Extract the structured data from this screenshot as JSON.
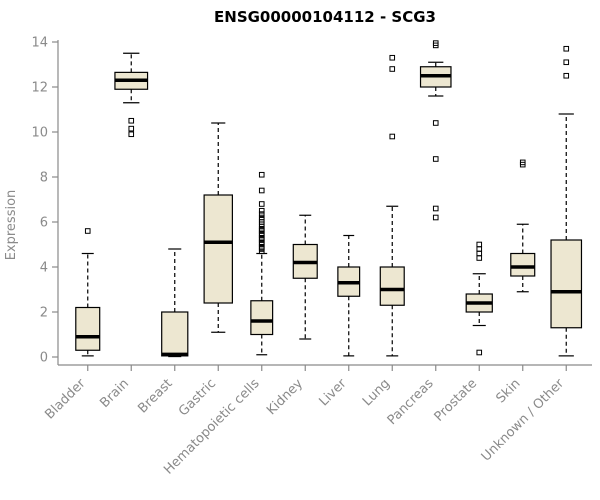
{
  "chart_data": {
    "type": "boxplot",
    "title": "ENSG00000104112 - SCG3",
    "ylabel": "Expression",
    "xlabel": "",
    "ylim": [
      0,
      14
    ],
    "yticks": [
      0,
      2,
      4,
      6,
      8,
      10,
      12,
      14
    ],
    "grid": false,
    "legend": "none",
    "box_fill": "#EDE7D1",
    "box_stroke": "#000000",
    "median_color": "#000000",
    "axis_color": "#8a8a8a",
    "label_color": "#8a8a8a",
    "categories": [
      "Bladder",
      "Brain",
      "Breast",
      "Gastric",
      "Hematopoietic cells",
      "Kidney",
      "Liver",
      "Lung",
      "Pancreas",
      "Prostate",
      "Skin",
      "Unknown / Other"
    ],
    "series": [
      {
        "name": "Bladder",
        "low": 0.05,
        "q1": 0.3,
        "median": 0.9,
        "q3": 2.2,
        "high": 4.6,
        "outliers": [
          5.6
        ],
        "width": 0.55
      },
      {
        "name": "Brain",
        "low": 11.3,
        "q1": 11.9,
        "median": 12.3,
        "q3": 12.65,
        "high": 13.5,
        "outliers": [
          10.5,
          10.15,
          9.9
        ],
        "width": 0.75
      },
      {
        "name": "Breast",
        "low": 0.02,
        "q1": 0.05,
        "median": 0.12,
        "q3": 2.0,
        "high": 4.8,
        "outliers": [],
        "width": 0.6
      },
      {
        "name": "Gastric",
        "low": 1.1,
        "q1": 2.4,
        "median": 5.1,
        "q3": 7.2,
        "high": 10.4,
        "outliers": [],
        "width": 0.65
      },
      {
        "name": "Hematopoietic cells",
        "low": 0.1,
        "q1": 1.0,
        "median": 1.6,
        "q3": 2.5,
        "high": 4.6,
        "outliers": [
          4.7,
          4.8,
          4.85,
          4.9,
          5.0,
          5.05,
          5.1,
          5.2,
          5.25,
          5.3,
          5.4,
          5.45,
          5.5,
          5.6,
          5.65,
          5.7,
          5.8,
          5.9,
          6.0,
          6.1,
          6.2,
          6.35,
          6.5,
          6.8,
          7.4,
          8.1
        ],
        "width": 0.5
      },
      {
        "name": "Kidney",
        "low": 0.8,
        "q1": 3.5,
        "median": 4.2,
        "q3": 5.0,
        "high": 6.3,
        "outliers": [],
        "width": 0.55
      },
      {
        "name": "Liver",
        "low": 0.05,
        "q1": 2.7,
        "median": 3.3,
        "q3": 4.0,
        "high": 5.4,
        "outliers": [],
        "width": 0.5
      },
      {
        "name": "Lung",
        "low": 0.05,
        "q1": 2.3,
        "median": 3.0,
        "q3": 4.0,
        "high": 6.7,
        "outliers": [
          9.8,
          12.8,
          13.3
        ],
        "width": 0.55
      },
      {
        "name": "Pancreas",
        "low": 11.6,
        "q1": 12.0,
        "median": 12.5,
        "q3": 12.9,
        "high": 13.1,
        "outliers": [
          13.95,
          13.85,
          10.4,
          8.8,
          6.6,
          6.2
        ],
        "width": 0.7
      },
      {
        "name": "Prostate",
        "low": 1.4,
        "q1": 2.0,
        "median": 2.4,
        "q3": 2.8,
        "high": 3.7,
        "outliers": [
          5.0,
          4.8,
          4.6,
          4.4,
          0.2
        ],
        "width": 0.6
      },
      {
        "name": "Skin",
        "low": 2.9,
        "q1": 3.6,
        "median": 4.0,
        "q3": 4.6,
        "high": 5.9,
        "outliers": [
          8.65,
          8.55
        ],
        "width": 0.55
      },
      {
        "name": "Unknown / Other",
        "low": 0.05,
        "q1": 1.3,
        "median": 2.9,
        "q3": 5.2,
        "high": 10.8,
        "outliers": [
          13.7,
          13.1,
          12.5
        ],
        "width": 0.7
      }
    ]
  }
}
